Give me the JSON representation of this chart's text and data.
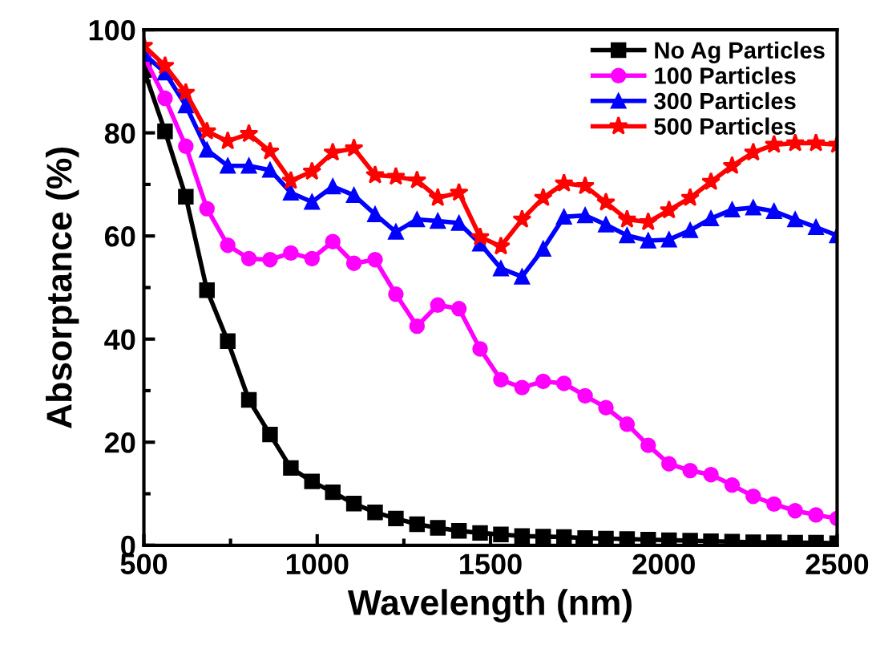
{
  "chart_data": {
    "type": "line",
    "xlabel": "Wavelength (nm)",
    "ylabel": "Absorptance (%)",
    "x": [
      500,
      561,
      621,
      682,
      742,
      803,
      864,
      924,
      985,
      1045,
      1106,
      1167,
      1227,
      1288,
      1348,
      1409,
      1470,
      1530,
      1591,
      1652,
      1712,
      1773,
      1833,
      1894,
      1955,
      2015,
      2076,
      2136,
      2197,
      2258,
      2318,
      2379,
      2439,
      2500
    ],
    "series": [
      {
        "name": "No Ag Particles",
        "color": "#000000",
        "marker": "square",
        "values": [
          92.2,
          80.3,
          67.6,
          49.5,
          39.6,
          28.2,
          21.5,
          15.0,
          12.4,
          10.3,
          8.1,
          6.4,
          5.2,
          4.1,
          3.4,
          2.8,
          2.4,
          2.1,
          1.8,
          1.7,
          1.6,
          1.4,
          1.3,
          1.2,
          1.1,
          1.0,
          0.9,
          0.8,
          0.7,
          0.6,
          0.6,
          0.5,
          0.5,
          0.4
        ]
      },
      {
        "name": "100 Particles",
        "color": "#ff00ff",
        "marker": "circle",
        "values": [
          94.8,
          86.7,
          77.4,
          65.3,
          58.2,
          55.6,
          55.4,
          56.7,
          55.6,
          58.9,
          54.7,
          55.4,
          48.7,
          42.5,
          46.6,
          45.9,
          38.1,
          32.1,
          30.6,
          31.8,
          31.4,
          29.0,
          26.7,
          23.5,
          19.4,
          15.8,
          14.5,
          13.7,
          11.7,
          9.5,
          8.0,
          6.7,
          5.9,
          5.2
        ]
      },
      {
        "name": "300 Particles",
        "color": "#0000ff",
        "marker": "triangle",
        "values": [
          95.3,
          91.7,
          85.3,
          76.7,
          73.6,
          73.6,
          72.8,
          68.4,
          66.6,
          69.6,
          67.9,
          64.2,
          60.8,
          63.2,
          62.9,
          62.5,
          58.5,
          53.7,
          52.1,
          57.5,
          63.7,
          64.0,
          62.2,
          60.1,
          59.1,
          59.3,
          61.1,
          63.4,
          65.1,
          65.5,
          64.8,
          63.2,
          61.7,
          60.1
        ]
      },
      {
        "name": "500 Particles",
        "color": "#ff0000",
        "marker": "star",
        "values": [
          96.9,
          93.0,
          87.8,
          80.3,
          78.4,
          79.8,
          76.4,
          70.7,
          72.5,
          76.2,
          77.0,
          71.8,
          71.5,
          70.8,
          67.4,
          68.4,
          59.8,
          58.0,
          63.2,
          67.4,
          70.2,
          69.7,
          66.5,
          63.2,
          62.7,
          65.0,
          67.4,
          70.5,
          73.6,
          76.2,
          77.7,
          78.0,
          78.0,
          77.7
        ]
      }
    ],
    "xlim": [
      500,
      2500
    ],
    "xticks": [
      500,
      1000,
      1500,
      2000,
      2500
    ],
    "ylim": [
      0,
      100
    ],
    "yticks": [
      0,
      20,
      40,
      60,
      80,
      100
    ],
    "grid": false,
    "legend": "top right",
    "line_style": "solid"
  }
}
